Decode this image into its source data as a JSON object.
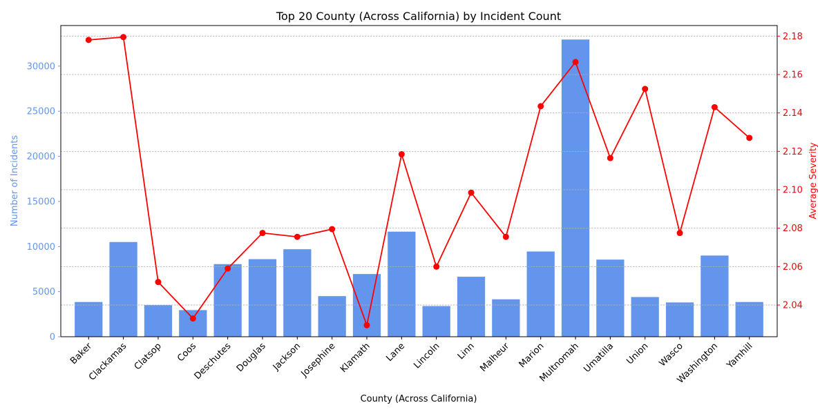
{
  "chart_data": {
    "type": "bar",
    "title": "Top 20 County (Across California) by Incident Count",
    "xlabel": "County (Across California)",
    "ylabel_left": "Number of Incidents",
    "ylabel_right": "Average Severity",
    "categories": [
      "Baker",
      "Clackamas",
      "Clatsop",
      "Coos",
      "Deschutes",
      "Douglas",
      "Jackson",
      "Josephine",
      "Klamath",
      "Lane",
      "Lincoln",
      "Linn",
      "Malheur",
      "Marion",
      "Multnomah",
      "Umatilla",
      "Union",
      "Wasco",
      "Washington",
      "Yamhill"
    ],
    "series": [
      {
        "name": "Number of Incidents",
        "axis": "left",
        "type": "bar",
        "values": [
          3850,
          10500,
          3500,
          2950,
          8050,
          8600,
          9700,
          4500,
          6950,
          11650,
          3400,
          6650,
          4150,
          9450,
          32950,
          8550,
          4400,
          3800,
          9000,
          3850
        ]
      },
      {
        "name": "Average Severity",
        "axis": "right",
        "type": "line",
        "values": [
          2.178,
          2.1795,
          2.052,
          2.033,
          2.059,
          2.0775,
          2.0755,
          2.0795,
          2.0295,
          2.1185,
          2.06,
          2.0985,
          2.0755,
          2.1435,
          2.1665,
          2.1165,
          2.1525,
          2.0775,
          2.143,
          2.127
        ]
      }
    ],
    "ylim_left": [
      0,
      34500
    ],
    "ylim_right": [
      2.0235,
      2.1855
    ],
    "yticks_left": [
      "0",
      "5000",
      "10000",
      "15000",
      "20000",
      "25000",
      "30000"
    ],
    "yticks_right": [
      "2.04",
      "2.06",
      "2.08",
      "2.10",
      "2.12",
      "2.14",
      "2.16",
      "2.18"
    ],
    "grid": true,
    "colors": {
      "bar": "#6495ed",
      "line": "#ff0000",
      "left_axis": "#6495ed",
      "right_axis": "#ff0000",
      "grid": "#b0b0b0"
    }
  }
}
